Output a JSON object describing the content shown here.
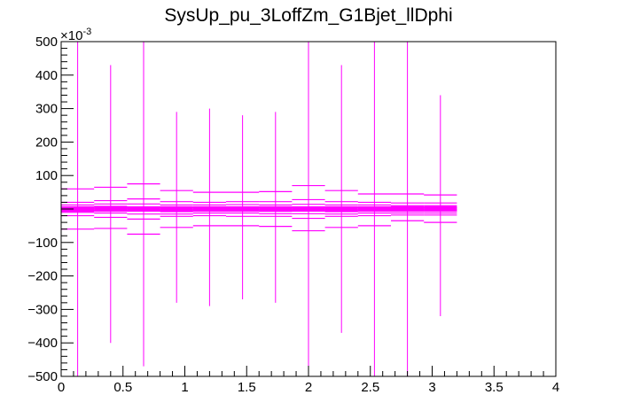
{
  "chart_data": {
    "type": "scatter",
    "title": "SysUp_pu_3LoffZm_G1Bjet_llDphi",
    "xlabel": "",
    "ylabel": "",
    "xlim": [
      0,
      4
    ],
    "ylim": [
      -0.5,
      0.5
    ],
    "y_multiplier_label": "×10",
    "y_multiplier_exponent": "-3",
    "x_ticks": [
      0,
      0.5,
      1,
      1.5,
      2,
      2.5,
      3,
      3.5,
      4
    ],
    "x_tick_labels": [
      "0",
      "0.5",
      "1",
      "1.5",
      "2",
      "2.5",
      "3",
      "3.5",
      "4"
    ],
    "y_ticks": [
      -0.5,
      -0.4,
      -0.3,
      -0.2,
      -0.1,
      0.1,
      0.2,
      0.3,
      0.4,
      0.5
    ],
    "y_tick_labels": [
      "−500",
      "−400",
      "−300",
      "−200",
      "−100",
      "100",
      "200",
      "300",
      "400",
      "500"
    ],
    "grid": false,
    "legend": "none",
    "bin_width": 0.2667,
    "series": [
      {
        "color": "#ff00ff",
        "x": [
          0.1333,
          0.4,
          0.6667,
          0.9333,
          1.2,
          1.4667,
          1.7333,
          2.0,
          2.2667,
          2.5333,
          2.8,
          3.0667
        ],
        "errors": [
          0.5,
          0.43,
          0.5,
          0.29,
          0.3,
          0.28,
          0.29,
          0.5,
          0.43,
          0.5,
          0.5,
          0.34
        ],
        "error_low": [
          0.5,
          0.4,
          0.47,
          0.28,
          0.29,
          0.27,
          0.28,
          0.5,
          0.37,
          0.5,
          0.5,
          0.32
        ],
        "lines_y": [
          [
            0.06,
            0.02,
            0.012,
            0.006,
            0.0,
            -0.004,
            -0.01,
            -0.02,
            -0.06
          ],
          [
            0.065,
            0.025,
            0.015,
            0.008,
            0.002,
            -0.004,
            -0.012,
            -0.025,
            -0.058
          ],
          [
            0.075,
            0.03,
            0.015,
            0.006,
            0.0,
            -0.006,
            -0.015,
            -0.03,
            -0.075
          ],
          [
            0.055,
            0.022,
            0.012,
            0.005,
            -0.002,
            -0.008,
            -0.015,
            -0.022,
            -0.055
          ],
          [
            0.05,
            0.02,
            0.012,
            0.004,
            -0.001,
            -0.006,
            -0.012,
            -0.02,
            -0.05
          ],
          [
            0.05,
            0.022,
            0.013,
            0.006,
            0.0,
            -0.005,
            -0.012,
            -0.022,
            -0.05
          ],
          [
            0.052,
            0.022,
            0.012,
            0.005,
            -0.001,
            -0.007,
            -0.014,
            -0.022,
            -0.052
          ],
          [
            0.07,
            0.028,
            0.014,
            0.006,
            0.0,
            -0.006,
            -0.014,
            -0.028,
            -0.065
          ],
          [
            0.055,
            0.022,
            0.012,
            0.004,
            -0.002,
            -0.008,
            -0.015,
            -0.022,
            -0.055
          ],
          [
            0.045,
            0.02,
            0.012,
            0.005,
            -0.001,
            -0.006,
            -0.012,
            -0.02,
            -0.05
          ],
          [
            0.045,
            0.018,
            0.01,
            0.004,
            -0.001,
            -0.006,
            -0.012,
            -0.018,
            -0.035
          ],
          [
            0.042,
            0.018,
            0.01,
            0.004,
            -0.001,
            -0.006,
            -0.012,
            -0.018,
            -0.04
          ]
        ]
      }
    ]
  }
}
